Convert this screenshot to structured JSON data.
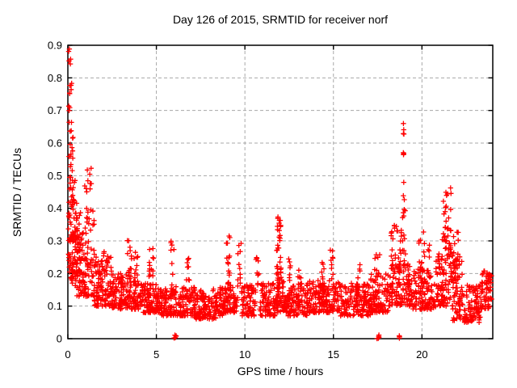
{
  "chart_data": {
    "type": "scatter",
    "title": "Day 126 of 2015, SRMTID for receiver norf",
    "xlabel": "GPS time / hours",
    "ylabel": "SRMTID / TECUs",
    "xlim": [
      0,
      24
    ],
    "ylim": [
      0,
      0.9
    ],
    "xticks": [
      [
        0,
        "0"
      ],
      [
        5,
        "5"
      ],
      [
        10,
        "10"
      ],
      [
        15,
        "15"
      ],
      [
        20,
        "20"
      ]
    ],
    "yticks": [
      [
        0,
        "0"
      ],
      [
        0.1,
        "0.1"
      ],
      [
        0.2,
        "0.2"
      ],
      [
        0.3,
        "0.3"
      ],
      [
        0.4,
        "0.4"
      ],
      [
        0.5,
        "0.5"
      ],
      [
        0.6,
        "0.6"
      ],
      [
        0.7,
        "0.7"
      ],
      [
        0.8,
        "0.8"
      ],
      [
        0.9,
        "0.9"
      ]
    ],
    "grid": {
      "visible": true,
      "style": "dashed",
      "color": "#a8a8a8"
    },
    "legend": null,
    "axis_color": "#000000",
    "series": [
      {
        "name": "SRMTID",
        "marker": "plus",
        "color": "#ff0000",
        "cluster_fields": [
          "x0",
          "x1",
          "y0",
          "y1",
          "count",
          "bias"
        ],
        "clusters": [
          [
            0.04,
            0.17,
            0.84,
            0.89,
            5,
            1
          ],
          [
            0.07,
            0.22,
            0.72,
            0.785,
            6,
            1
          ],
          [
            0.04,
            0.15,
            0.69,
            0.715,
            3,
            1
          ],
          [
            0.07,
            0.3,
            0.57,
            0.665,
            9,
            1
          ],
          [
            0.04,
            0.3,
            0.495,
            0.57,
            9,
            1
          ],
          [
            0.04,
            0.45,
            0.42,
            0.5,
            14,
            1
          ],
          [
            0.03,
            0.55,
            0.3,
            0.42,
            40,
            1.2
          ],
          [
            0.03,
            0.7,
            0.2,
            0.32,
            55,
            1.3
          ],
          [
            0.04,
            0.6,
            0.155,
            0.22,
            25,
            1
          ],
          [
            0.95,
            1.35,
            0.44,
            0.525,
            10,
            1
          ],
          [
            0.5,
            1.5,
            0.13,
            0.4,
            120,
            1.7
          ],
          [
            1.5,
            2.5,
            0.1,
            0.25,
            110,
            1.6
          ],
          [
            2.02,
            2.25,
            0.2,
            0.285,
            8,
            1
          ],
          [
            2.5,
            3.3,
            0.09,
            0.2,
            90,
            1.5
          ],
          [
            3.35,
            3.62,
            0.18,
            0.315,
            16,
            1.1
          ],
          [
            3.7,
            3.95,
            0.16,
            0.27,
            12,
            1.1
          ],
          [
            3.3,
            4.2,
            0.09,
            0.18,
            80,
            1.4
          ],
          [
            4.2,
            5.2,
            0.08,
            0.17,
            95,
            1.5
          ],
          [
            4.55,
            4.9,
            0.16,
            0.28,
            14,
            1.2
          ],
          [
            5.2,
            6.2,
            0.07,
            0.16,
            95,
            1.5
          ],
          [
            5.8,
            6.0,
            0.15,
            0.3,
            10,
            1.2
          ],
          [
            5.98,
            6.12,
            0.0,
            0.012,
            5,
            1
          ],
          [
            6.2,
            7.2,
            0.07,
            0.16,
            95,
            1.5
          ],
          [
            6.7,
            6.9,
            0.14,
            0.25,
            8,
            1.2
          ],
          [
            7.2,
            8.5,
            0.06,
            0.155,
            120,
            1.5
          ],
          [
            8.5,
            9.0,
            0.07,
            0.16,
            45,
            1.4
          ],
          [
            8.95,
            9.15,
            0.17,
            0.33,
            14,
            1.1
          ],
          [
            9.0,
            9.6,
            0.08,
            0.17,
            55,
            1.5
          ],
          [
            9.6,
            9.8,
            0.17,
            0.315,
            11,
            1.1
          ],
          [
            9.8,
            10.6,
            0.07,
            0.165,
            75,
            1.5
          ],
          [
            10.62,
            10.82,
            0.16,
            0.285,
            9,
            1.1
          ],
          [
            10.8,
            11.75,
            0.07,
            0.17,
            85,
            1.5
          ],
          [
            11.78,
            12.04,
            0.2,
            0.375,
            26,
            0.9
          ],
          [
            11.75,
            12.05,
            0.12,
            0.22,
            15,
            1
          ],
          [
            11.75,
            12.45,
            0.08,
            0.18,
            65,
            1.5
          ],
          [
            12.45,
            12.62,
            0.14,
            0.26,
            7,
            1.1
          ],
          [
            12.4,
            13.6,
            0.07,
            0.17,
            110,
            1.5
          ],
          [
            13.0,
            13.18,
            0.14,
            0.22,
            6,
            1
          ],
          [
            13.6,
            15.3,
            0.08,
            0.18,
            160,
            1.6
          ],
          [
            14.3,
            14.5,
            0.16,
            0.27,
            10,
            1.1
          ],
          [
            14.8,
            15.0,
            0.16,
            0.285,
            10,
            1.1
          ],
          [
            15.3,
            17.1,
            0.07,
            0.17,
            165,
            1.5
          ],
          [
            16.3,
            16.52,
            0.15,
            0.235,
            8,
            1.1
          ],
          [
            17.1,
            18.1,
            0.08,
            0.2,
            100,
            1.5
          ],
          [
            17.3,
            17.65,
            0.16,
            0.26,
            12,
            1.1
          ],
          [
            17.45,
            17.58,
            0.0,
            0.012,
            5,
            1
          ],
          [
            18.1,
            19.4,
            0.1,
            0.24,
            115,
            1.4
          ],
          [
            18.25,
            18.85,
            0.2,
            0.36,
            30,
            1.2
          ],
          [
            18.88,
            19.08,
            0.26,
            0.48,
            14,
            1
          ],
          [
            18.92,
            19.02,
            0.545,
            0.575,
            3,
            1
          ],
          [
            18.94,
            19.0,
            0.615,
            0.675,
            4,
            1
          ],
          [
            18.68,
            18.78,
            0.0,
            0.01,
            3,
            1
          ],
          [
            19.4,
            20.8,
            0.09,
            0.22,
            120,
            1.5
          ],
          [
            19.8,
            20.15,
            0.18,
            0.35,
            16,
            1.2
          ],
          [
            20.25,
            20.45,
            0.15,
            0.3,
            10,
            1.1
          ],
          [
            20.8,
            22.3,
            0.1,
            0.26,
            140,
            1.5
          ],
          [
            21.15,
            21.65,
            0.24,
            0.485,
            38,
            1.2
          ],
          [
            21.55,
            22.05,
            0.18,
            0.33,
            22,
            1.2
          ],
          [
            21.7,
            22.25,
            0.045,
            0.1,
            16,
            1
          ],
          [
            22.3,
            23.3,
            0.05,
            0.165,
            90,
            1.4
          ],
          [
            23.3,
            23.95,
            0.09,
            0.21,
            65,
            1.5
          ]
        ]
      }
    ]
  }
}
